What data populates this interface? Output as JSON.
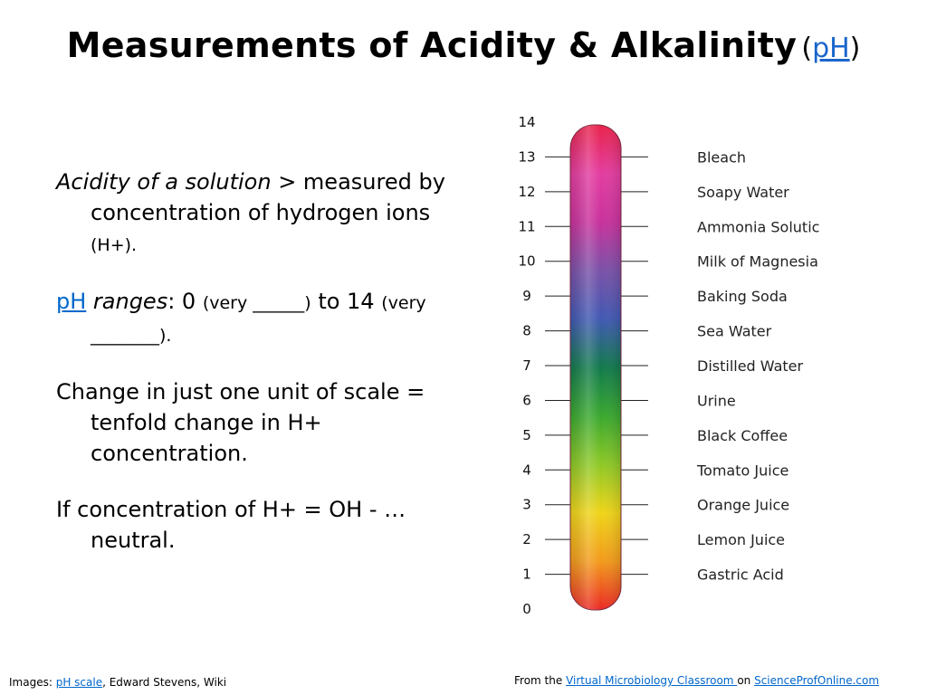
{
  "title": {
    "main": "Measurements of Acidity & Alkalinity",
    "paren_open": "(",
    "paren_link": "pH",
    "paren_close": ")"
  },
  "bullets": {
    "p1": {
      "italic": "Acidity of a solution",
      "text": " > measured by concentration of hydrogen ions ",
      "small": "(H+)."
    },
    "p2": {
      "link": "pH",
      "italic": " ranges",
      "text1": ": 0 ",
      "small1": "(very ______)",
      "text2": " to 14 ",
      "small2": "(very ________)."
    },
    "p3": {
      "text": "Change in just one unit of scale = tenfold change in H+ concentration."
    },
    "p4": {
      "text": "If concentration of H+ = OH - … neutral."
    }
  },
  "scale": {
    "numbers": [
      "14",
      "13",
      "12",
      "11",
      "10",
      "9",
      "8",
      "7",
      "6",
      "5",
      "4",
      "3",
      "2",
      "1",
      "0"
    ],
    "substances": [
      {
        "ph": "13",
        "name": "Bleach"
      },
      {
        "ph": "12",
        "name": "Soapy Water"
      },
      {
        "ph": "11",
        "name": "Ammonia Solutic"
      },
      {
        "ph": "10",
        "name": "Milk of Magnesia"
      },
      {
        "ph": "9",
        "name": "Baking Soda"
      },
      {
        "ph": "8",
        "name": "Sea Water"
      },
      {
        "ph": "7",
        "name": "Distilled Water"
      },
      {
        "ph": "6",
        "name": "Urine"
      },
      {
        "ph": "5",
        "name": "Black Coffee"
      },
      {
        "ph": "4",
        "name": "Tomato Juice"
      },
      {
        "ph": "3",
        "name": "Orange Juice"
      },
      {
        "ph": "2",
        "name": "Lemon Juice"
      },
      {
        "ph": "1",
        "name": "Gastric Acid"
      }
    ],
    "gradient_colors": [
      "#e8234a",
      "#e33da0",
      "#c8329c",
      "#7a51a8",
      "#4159b3",
      "#127a4c",
      "#3aa82f",
      "#8ec826",
      "#efd419",
      "#f29a1c",
      "#ea2a25"
    ]
  },
  "footer": {
    "left_prefix": "Images: ",
    "left_link": "pH scale",
    "left_suffix": ", Edward Stevens, Wiki",
    "right_prefix": "From the ",
    "right_link1": "Virtual Microbiology Classroom ",
    "right_mid": " on ",
    "right_link2": "ScienceProfOnline.com"
  }
}
